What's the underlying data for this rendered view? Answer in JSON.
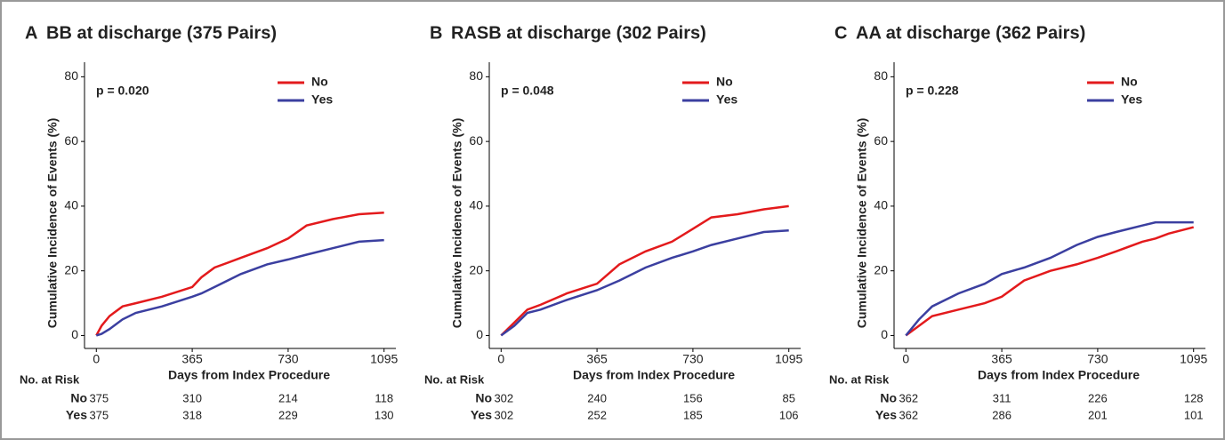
{
  "chart_data": [
    {
      "type": "line",
      "panel": "A",
      "title": "BB at discharge (375 Pairs)",
      "annotation": "p = 0.020",
      "x_label": "Days from Index Procedure",
      "y_label": "Cumulative Incidence of Events (%)",
      "xlim": [
        -45,
        1140
      ],
      "xticks": [
        0,
        365,
        730,
        1095
      ],
      "ylim": [
        -4,
        84.5
      ],
      "yticks": [
        0,
        20,
        40,
        60,
        80
      ],
      "x": [
        0,
        20,
        50,
        100,
        150,
        250,
        365,
        400,
        450,
        550,
        650,
        730,
        800,
        900,
        1000,
        1095
      ],
      "series": [
        {
          "name": "No",
          "color": "#e31a1c",
          "values": [
            0,
            3,
            6,
            9,
            10,
            12,
            15,
            18,
            21,
            24,
            27,
            30,
            34,
            36,
            37.5,
            38
          ]
        },
        {
          "name": "Yes",
          "color": "#3b3fa0",
          "values": [
            0,
            0.5,
            2,
            5,
            7,
            9,
            12,
            13,
            15,
            19,
            22,
            23.5,
            25,
            27,
            29,
            29.5
          ]
        }
      ],
      "risk_table": {
        "label": "No. at Risk",
        "rows": [
          [
            375,
            310,
            214,
            118
          ],
          [
            375,
            318,
            229,
            130
          ]
        ]
      }
    },
    {
      "type": "line",
      "panel": "B",
      "title": "RASB at discharge (302 Pairs)",
      "annotation": "p = 0.048",
      "x_label": "Days from Index Procedure",
      "y_label": "Cumulative Incidence of Events (%)",
      "xlim": [
        -45,
        1140
      ],
      "xticks": [
        0,
        365,
        730,
        1095
      ],
      "ylim": [
        -4,
        84.5
      ],
      "yticks": [
        0,
        20,
        40,
        60,
        80
      ],
      "x": [
        0,
        50,
        100,
        150,
        250,
        365,
        450,
        550,
        650,
        730,
        800,
        900,
        1000,
        1095
      ],
      "series": [
        {
          "name": "No",
          "color": "#e31a1c",
          "values": [
            0,
            4,
            8,
            9.5,
            13,
            16,
            22,
            26,
            29,
            33,
            36.5,
            37.5,
            39,
            40
          ]
        },
        {
          "name": "Yes",
          "color": "#3b3fa0",
          "values": [
            0,
            3,
            7,
            8,
            11,
            14,
            17,
            21,
            24,
            26,
            28,
            30,
            32,
            32.5
          ]
        }
      ],
      "risk_table": {
        "label": "No. at Risk",
        "rows": [
          [
            302,
            240,
            156,
            85
          ],
          [
            302,
            252,
            185,
            106
          ]
        ]
      }
    },
    {
      "type": "line",
      "panel": "C",
      "title": "AA at discharge (362 Pairs)",
      "annotation": "p = 0.228",
      "x_label": "Days from Index Procedure",
      "y_label": "Cumulative Incidence of Events (%)",
      "xlim": [
        -45,
        1140
      ],
      "xticks": [
        0,
        365,
        730,
        1095
      ],
      "ylim": [
        -4,
        84.5
      ],
      "yticks": [
        0,
        20,
        40,
        60,
        80
      ],
      "x": [
        0,
        50,
        100,
        200,
        300,
        365,
        450,
        550,
        650,
        730,
        800,
        900,
        950,
        1000,
        1095
      ],
      "series": [
        {
          "name": "No",
          "color": "#e31a1c",
          "values": [
            0,
            3,
            6,
            8,
            10,
            12,
            17,
            20,
            22,
            24,
            26,
            29,
            30,
            31.5,
            33.5
          ]
        },
        {
          "name": "Yes",
          "color": "#3b3fa0",
          "values": [
            0,
            5,
            9,
            13,
            16,
            19,
            21,
            24,
            28,
            30.5,
            32,
            34,
            35,
            35,
            35
          ]
        }
      ],
      "risk_table": {
        "label": "No. at Risk",
        "rows": [
          [
            362,
            311,
            226,
            128
          ],
          [
            362,
            286,
            201,
            101
          ]
        ]
      }
    }
  ]
}
